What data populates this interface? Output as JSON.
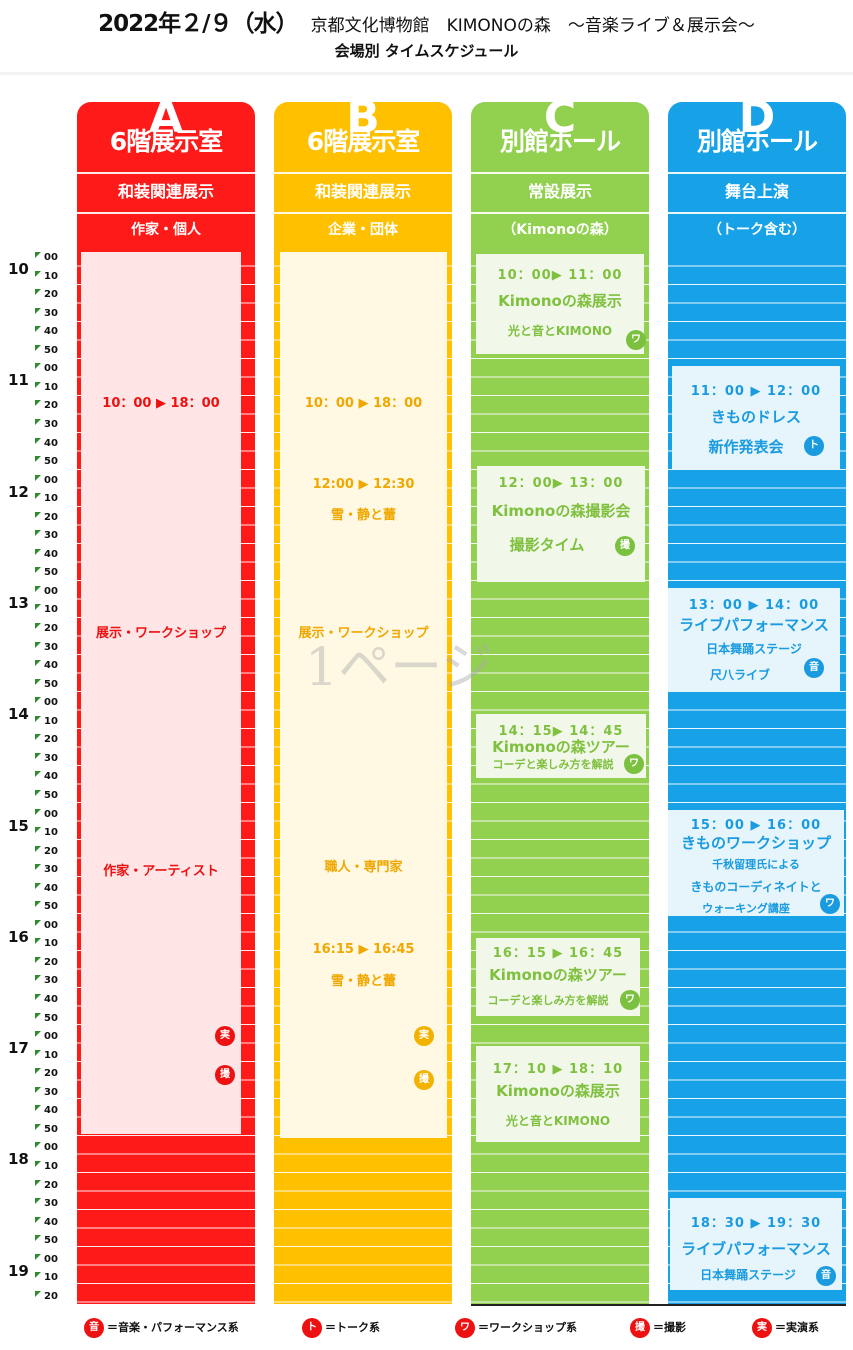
{
  "header": {
    "date": "2022年２/９（水）",
    "venue": "京都文化博物館　KIMONOの森　～音楽ライブ＆展示会～",
    "subtitle": "会場別 タイムスケジュール"
  },
  "columns": [
    {
      "letter": "A",
      "room": "6階展示室",
      "category": "和装関連展示",
      "sub": "作家・個人",
      "color": "#ff1a1a"
    },
    {
      "letter": "B",
      "room": "6階展示室",
      "category": "和装関連展示",
      "sub": "企業・団体",
      "color": "#ffc000"
    },
    {
      "letter": "C",
      "room": "別館ホール",
      "category": "常設展示",
      "sub": "（Kimonoの森）",
      "color": "#92d050"
    },
    {
      "letter": "D",
      "room": "別館ホール",
      "category": "舞台上演",
      "sub": "（トーク含む）",
      "color": "#17a2e8"
    }
  ],
  "time_axis": {
    "hours": [
      "10",
      "11",
      "12",
      "13",
      "14",
      "15",
      "16",
      "17",
      "18",
      "19"
    ],
    "minutes": [
      "00",
      "10",
      "20",
      "30",
      "40",
      "50"
    ],
    "last_hour_minutes": [
      "00",
      "10",
      "20"
    ]
  },
  "colA": {
    "time": "10：00 ▶ 18：00",
    "label1": "展示・ワークショップ",
    "label2": "作家・アーティスト",
    "badge1": "実",
    "badge2": "撮"
  },
  "colB": {
    "time": "10：00 ▶ 18：00",
    "ev1_time": "12:00 ▶ 12:30",
    "ev1_name": "雪・静と蕾",
    "label1": "展示・ワークショップ",
    "label2": "職人・専門家",
    "ev2_time": "16:15 ▶ 16:45",
    "ev2_name": "雪・静と蕾",
    "badge1": "実",
    "badge2": "撮"
  },
  "colC": [
    {
      "time": "10：00▶ 11：00",
      "title": "Kimonoの森展示",
      "note": "光と音とKIMONO",
      "badge": "ワ"
    },
    {
      "time": "12：00▶ 13：00",
      "title": "Kimonoの森撮影会",
      "note": "撮影タイム",
      "badge": "撮"
    },
    {
      "time": "14：15▶ 14：45",
      "title": "Kimonoの森ツアー",
      "note": "コーデと楽しみ方を解説",
      "badge": "ワ"
    },
    {
      "time": "16：15 ▶ 16：45",
      "title": "Kimonoの森ツアー",
      "note": "コーデと楽しみ方を解説",
      "badge": "ワ"
    },
    {
      "time": "17：10 ▶ 18：10",
      "title": "Kimonoの森展示",
      "note": "光と音とKIMONO",
      "badge": ""
    }
  ],
  "colD": [
    {
      "time": "11：00 ▶ 12：00",
      "title": "きものドレス",
      "line2": "新作発表会",
      "line3": "",
      "badge": "ト"
    },
    {
      "time": "13：00 ▶ 14：00",
      "title": "ライブパフォーマンス",
      "line2": "日本舞踊ステージ",
      "line3": "尺八ライブ",
      "badge": "音"
    },
    {
      "time": "15：00 ▶ 16：00",
      "title": "きものワークショップ",
      "line2": "千秋留理氏による",
      "line3": "きものコーディネイトと",
      "line4": "ウォーキング講座",
      "badge": "ワ"
    },
    {
      "time": "18：30 ▶ 19：30",
      "title": "ライブパフォーマンス",
      "line2": "日本舞踊ステージ",
      "line3": "",
      "badge": "音"
    }
  ],
  "watermark": "1ページ",
  "legend": [
    {
      "badge": "音",
      "label": "＝音楽・パフォーマンス系",
      "color": "#ee1111"
    },
    {
      "badge": "ト",
      "label": "＝トーク系",
      "color": "#ee1111"
    },
    {
      "badge": "ワ",
      "label": "＝ワークショップ系",
      "color": "#ee1111"
    },
    {
      "badge": "撮",
      "label": "＝撮影",
      "color": "#ee1111"
    },
    {
      "badge": "実",
      "label": "＝実演系",
      "color": "#ee1111"
    }
  ]
}
